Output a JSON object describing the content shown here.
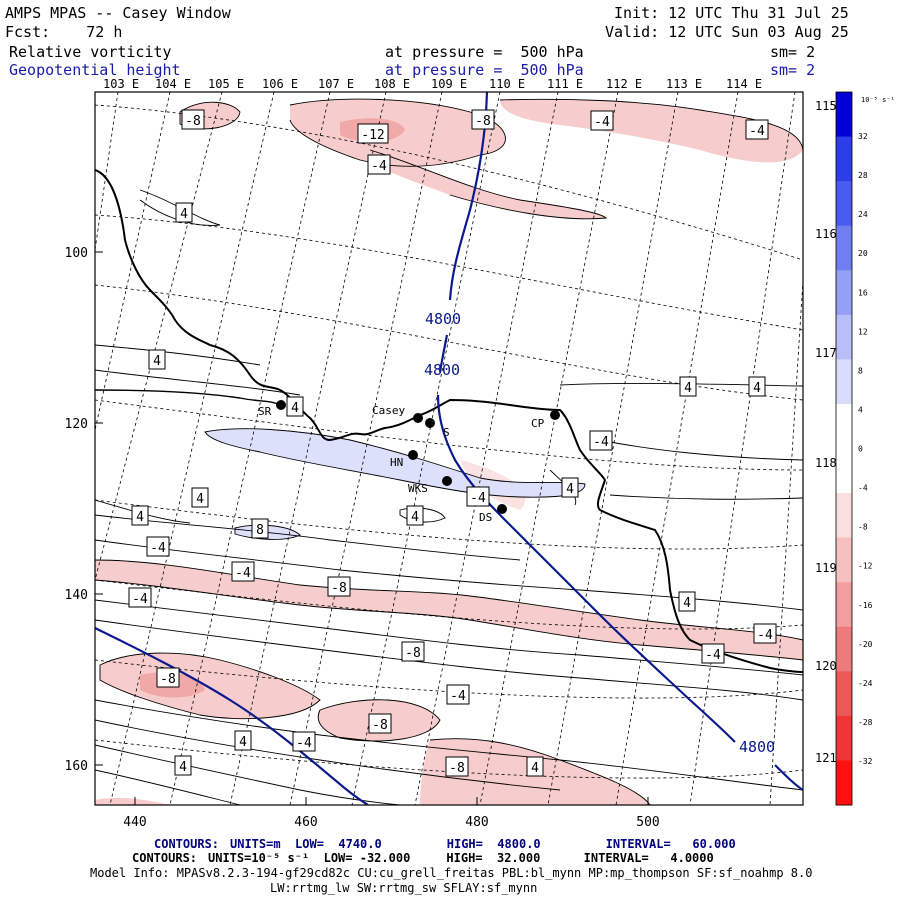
{
  "header": {
    "model": "AMPS MPAS -- Casey Window",
    "init": "Init: 12 UTC Thu 31 Jul 25",
    "fcst": "Fcst:    72 h",
    "valid": "Valid: 12 UTC Sun 03 Aug 25",
    "field1_name": "Relative vorticity",
    "field1_level": "at pressure =  500 hPa",
    "field1_sm": "sm= 2",
    "field2_name": "Geopotential height",
    "field2_level": "at pressure =  500 hPa",
    "field2_sm": "sm= 2"
  },
  "top_lon_labels": [
    "103 E",
    "104 E",
    "105 E",
    "106 E",
    "107 E",
    "108 E",
    "109 E",
    "110 E",
    "111 E",
    "112 E",
    "113 E",
    "114 E"
  ],
  "right_lon_labels": [
    "115 E",
    "116 E",
    "117 E",
    "118 E",
    "119 E",
    "120 E",
    "121 E"
  ],
  "x_ticks": [
    "440",
    "460",
    "480",
    "500"
  ],
  "y_ticks": [
    "100",
    "120",
    "140",
    "160"
  ],
  "stations": [
    "SR",
    "Casey",
    "S",
    "HN",
    "WKS",
    "DS",
    "CP"
  ],
  "height_labels": [
    "4800",
    "4800",
    "4800"
  ],
  "vort_labels": [
    "-8",
    "-12",
    "-8",
    "-4",
    "-4",
    "-4",
    "4",
    "4",
    "4",
    "4",
    "4",
    "4",
    "4",
    "-4",
    "-4",
    "-8",
    "8",
    "-4",
    "-4",
    "-4",
    "4",
    "-8",
    "-4",
    "-8",
    "-4",
    "4",
    "4",
    "-8",
    "-4",
    "4",
    "-4",
    "4",
    "-8",
    "4"
  ],
  "colorbar": {
    "unit": "10⁻⁵ s⁻¹",
    "ticks": [
      "32",
      "28",
      "24",
      "20",
      "16",
      "12",
      "8",
      "4",
      "0",
      "-4",
      "-8",
      "-12",
      "-16",
      "-20",
      "-24",
      "-28",
      "-32"
    ]
  },
  "footer": {
    "line1_label": "CONTOURS:",
    "line1": "UNITS=m  LOW=  4740.0         HIGH=  4800.0         INTERVAL=   60.000",
    "line2_label": "CONTOURS:",
    "line2": "UNITS=10⁻⁵ s⁻¹  LOW= -32.000     HIGH=  32.000      INTERVAL=   4.0000",
    "model_info": "Model Info: MPASv8.2.3-194-gf29cd82c CU:cu_grell_freitas PBL:bl_mynn MP:mp_thompson SF:sf_noahmp 8.0",
    "physics": "LW:rrtmg_lw SW:rrtmg_sw SFLAY:sf_mynn"
  },
  "colors": {
    "height_contour": "#0a1a8c",
    "neg_vort": "#f2b8b8",
    "pos_vort": "#dde0fb"
  }
}
